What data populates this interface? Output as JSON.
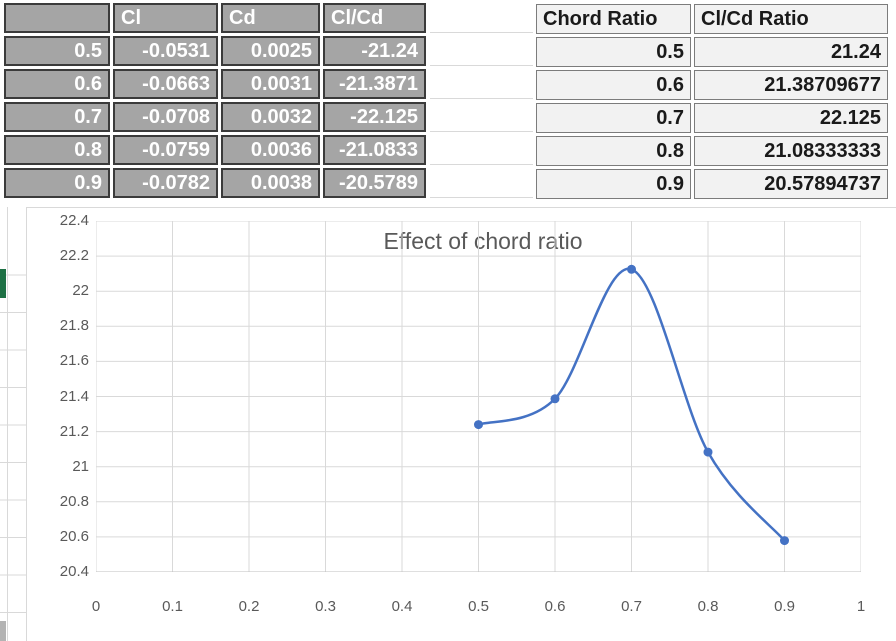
{
  "left_table": {
    "headers": [
      "",
      "Cl",
      "Cd",
      "Cl/Cd"
    ],
    "rows": [
      [
        "0.5",
        "-0.0531",
        "0.0025",
        "-21.24"
      ],
      [
        "0.6",
        "-0.0663",
        "0.0031",
        "-21.3871"
      ],
      [
        "0.7",
        "-0.0708",
        "0.0032",
        "-22.125"
      ],
      [
        "0.8",
        "-0.0759",
        "0.0036",
        "-21.0833"
      ],
      [
        "0.9",
        "-0.0782",
        "0.0038",
        "-20.5789"
      ]
    ]
  },
  "right_table": {
    "headers": [
      "Chord Ratio",
      "Cl/Cd Ratio"
    ],
    "rows": [
      [
        "0.5",
        "21.24"
      ],
      [
        "0.6",
        "21.38709677"
      ],
      [
        "0.7",
        "22.125"
      ],
      [
        "0.8",
        "21.08333333"
      ],
      [
        "0.9",
        "20.57894737"
      ]
    ]
  },
  "chart_data": {
    "type": "line",
    "title": "Effect of chord ratio",
    "x": [
      0.5,
      0.6,
      0.7,
      0.8,
      0.9
    ],
    "y": [
      21.24,
      21.38709677,
      22.125,
      21.08333333,
      20.57894737
    ],
    "xlim": [
      0,
      1
    ],
    "ylim": [
      20.4,
      22.4
    ],
    "x_tick_labels": [
      "0",
      "0.1",
      "0.2",
      "0.3",
      "0.4",
      "0.5",
      "0.6",
      "0.7",
      "0.8",
      "0.9",
      "1"
    ],
    "y_tick_labels": [
      "20.4",
      "20.6",
      "20.8",
      "21",
      "21.2",
      "21.4",
      "21.6",
      "21.8",
      "22",
      "22.2",
      "22.4"
    ],
    "grid": true,
    "legend": false,
    "smooth": true,
    "marker": "circle",
    "line_color": "#4472c4"
  },
  "colors": {
    "series_line": "#4472c4",
    "gridline": "#d9d9d9",
    "axis_line": "#bfbfbf",
    "axis_text": "#595959",
    "left_table_fill": "#a5a5a5",
    "left_table_border": "#3b3b3b",
    "left_table_text": "#ffffff",
    "right_table_fill": "#f2f2f2",
    "right_table_border": "#7c7c7c",
    "right_table_text": "#1a1a1a",
    "selection_indicator": "#1e7145"
  }
}
